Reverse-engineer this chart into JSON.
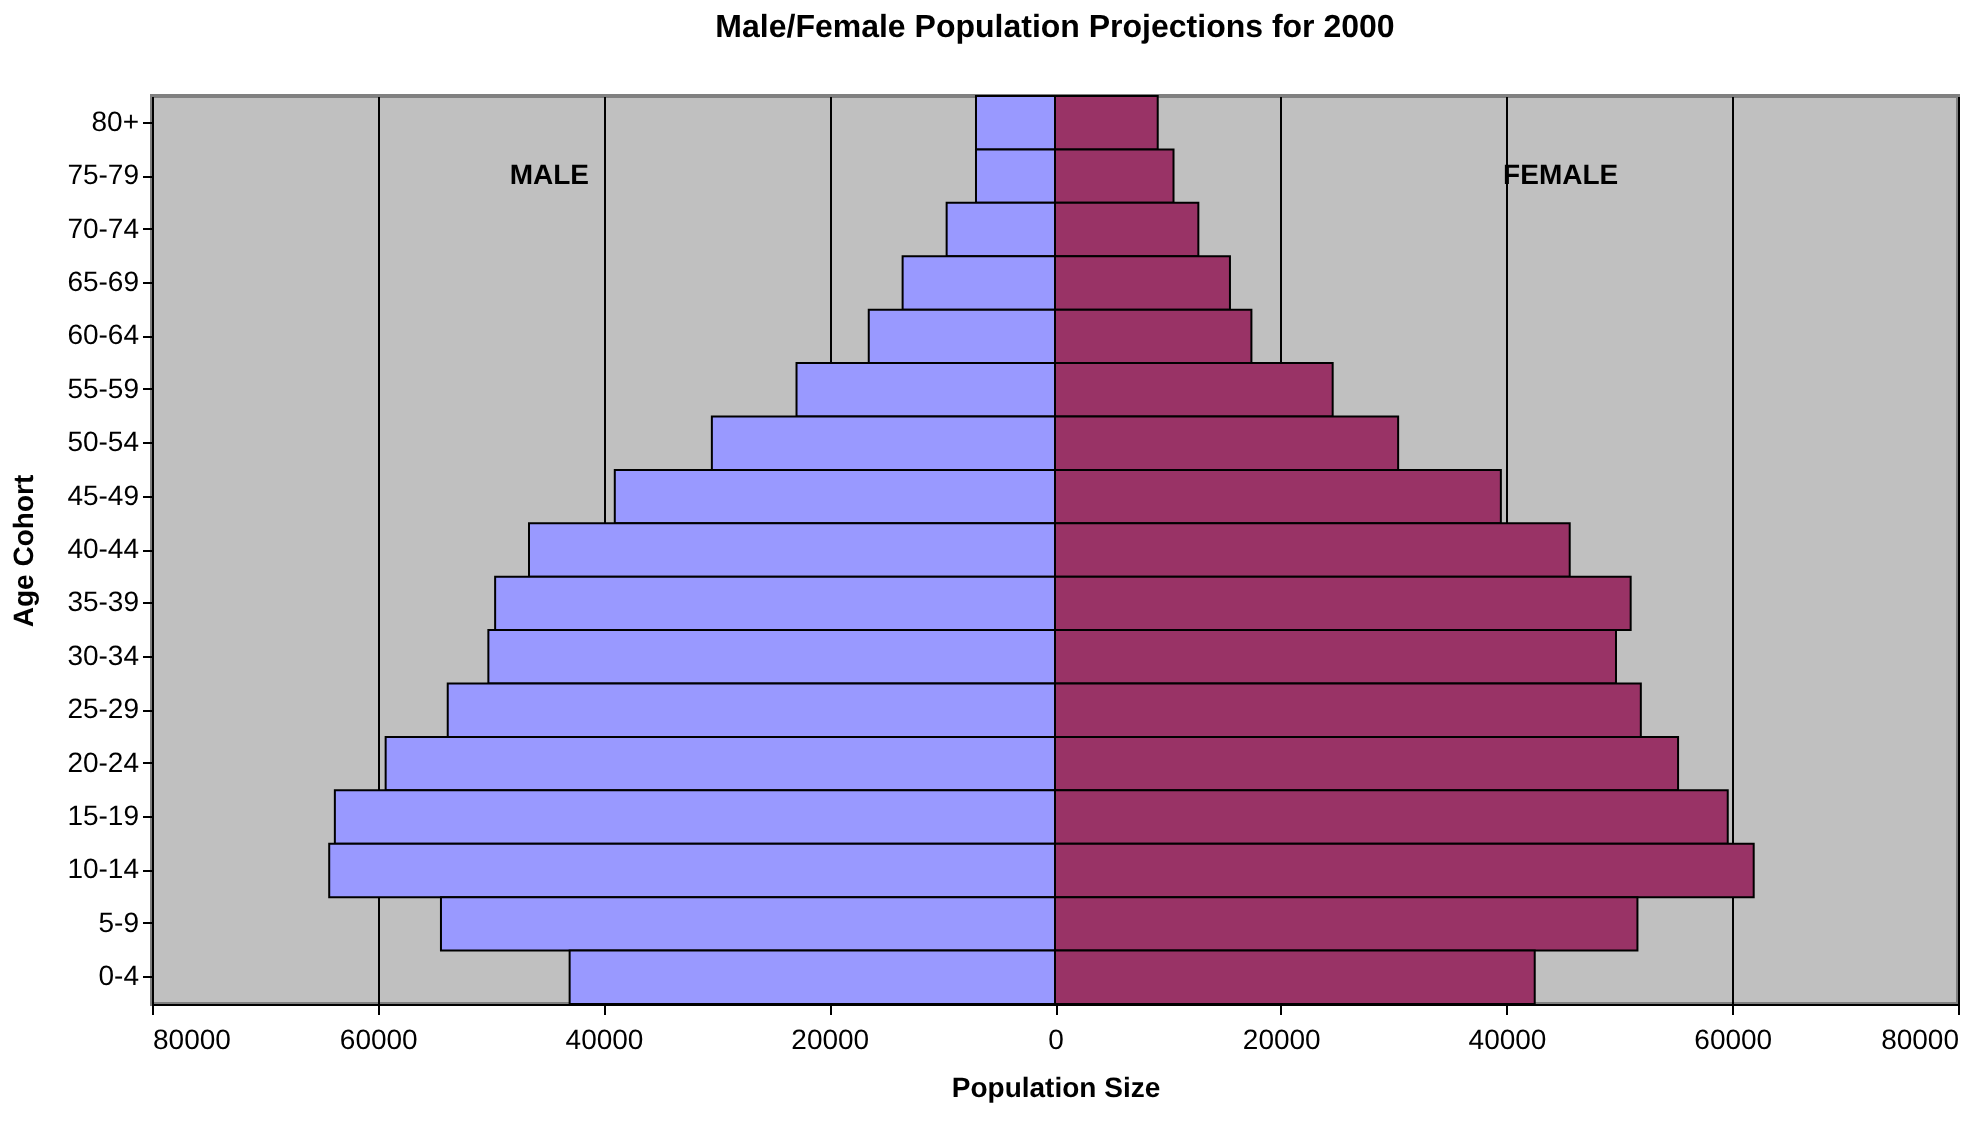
{
  "chart_data": {
    "type": "bar",
    "orientation": "horizontal",
    "stacked": true,
    "title": "Male/Female Population Projections for 2000",
    "xlabel": "Population Size",
    "ylabel": "Age Cohort",
    "annotations": [
      "MALE",
      "FEMALE"
    ],
    "categories": [
      "80+",
      "75-79",
      "70-74",
      "65-69",
      "60-64",
      "55-59",
      "50-54",
      "45-49",
      "40-44",
      "35-39",
      "30-34",
      "25-29",
      "20-24",
      "15-19",
      "10-14",
      "5-9",
      "0-4"
    ],
    "series": [
      {
        "color": "#9999ff",
        "values": [
          -7000,
          -7000,
          -9600,
          -13500,
          -16500,
          -22900,
          -30400,
          -39000,
          -46600,
          -49600,
          -50200,
          -53800,
          -59300,
          -63800,
          -64300,
          -54400,
          -43000
        ]
      },
      {
        "color": "#993366",
        "values": [
          9100,
          10500,
          12700,
          15500,
          17400,
          24600,
          30400,
          39500,
          45600,
          51000,
          49700,
          51900,
          55200,
          59600,
          61900,
          51600,
          42500
        ]
      }
    ],
    "xlim": [
      -80000,
      80000
    ],
    "xticks": [
      {
        "value": -80000,
        "label": "80000"
      },
      {
        "value": -60000,
        "label": "60000"
      },
      {
        "value": -40000,
        "label": "40000"
      },
      {
        "value": -20000,
        "label": "20000"
      },
      0,
      20000,
      40000,
      60000,
      80000
    ],
    "grid": "x"
  }
}
